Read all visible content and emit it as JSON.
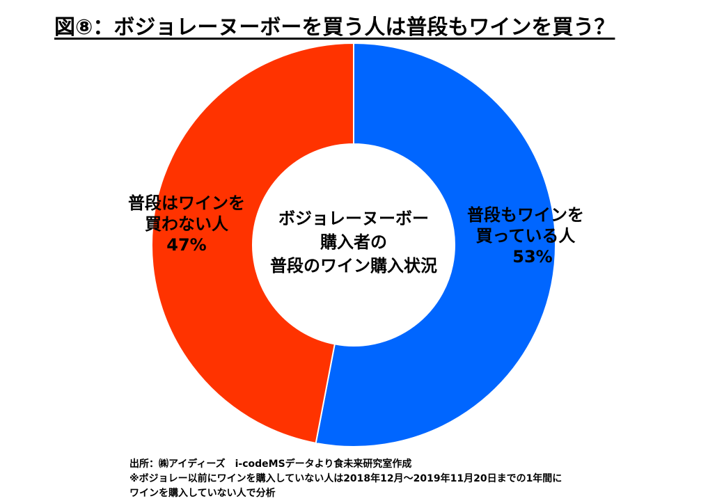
{
  "title": "図⑧：ボジョレーヌーボーを買う人は普段もワインを買う？",
  "chart_data": {
    "type": "pie",
    "donut": true,
    "center_label": [
      "ボジョレーヌーボー",
      "購入者の",
      "普段のワイン購入状況"
    ],
    "slices": [
      {
        "label_lines": [
          "普段もワインを",
          "買っている人"
        ],
        "value_text": "53%",
        "value": 53,
        "color": "#0066FF"
      },
      {
        "label_lines": [
          "普段はワインを",
          "買わない人"
        ],
        "value_text": "47%",
        "value": 47,
        "color": "#FF3300"
      }
    ]
  },
  "source": [
    "出所：㈱アイディーズ　i-codeMSデータより食未来研究室作成",
    "※ボジョレー以前にワインを購入していない人は2018年12月～2019年11月20日までの1年間に",
    "ワインを購入していない人で分析"
  ]
}
